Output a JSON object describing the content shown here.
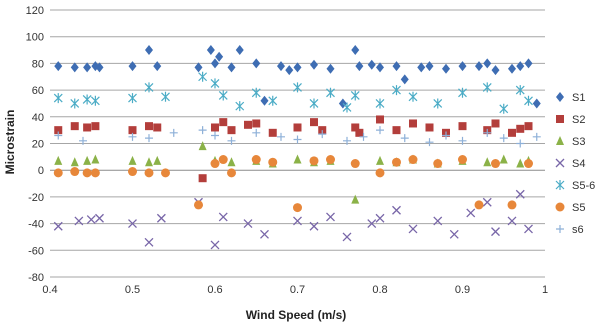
{
  "chart_data": {
    "type": "scatter",
    "xlabel": "Wind Speed (m/s)",
    "ylabel": "Microstrain",
    "xlim": [
      0.4,
      1.0
    ],
    "ylim": [
      -80,
      120
    ],
    "xticks": [
      0.4,
      0.5,
      0.6,
      0.7,
      0.8,
      0.9,
      1.0
    ],
    "xtick_labels": [
      "0.4",
      "0.5",
      "0.6",
      "0.7",
      "0.8",
      "0.9",
      "1"
    ],
    "yticks": [
      -80,
      -60,
      -40,
      -20,
      0,
      20,
      40,
      60,
      80,
      100,
      120
    ],
    "ytick_labels": [
      "-80",
      "-60",
      "-40",
      "-20",
      "0",
      "20",
      "40",
      "60",
      "80",
      "100",
      "120"
    ],
    "grid": "horizontal",
    "legend_position": "right",
    "series": [
      {
        "name": "S1",
        "marker": "diamond",
        "color": "#3e6db3",
        "x": [
          0.41,
          0.43,
          0.445,
          0.455,
          0.46,
          0.5,
          0.52,
          0.53,
          0.58,
          0.595,
          0.6,
          0.605,
          0.62,
          0.63,
          0.65,
          0.66,
          0.68,
          0.69,
          0.7,
          0.72,
          0.74,
          0.755,
          0.77,
          0.775,
          0.79,
          0.8,
          0.82,
          0.83,
          0.85,
          0.86,
          0.88,
          0.9,
          0.92,
          0.93,
          0.94,
          0.96,
          0.97,
          0.98,
          0.99
        ],
        "y": [
          78,
          77,
          77,
          78,
          77,
          78,
          90,
          78,
          77,
          90,
          80,
          85,
          77,
          90,
          80,
          52,
          78,
          75,
          77,
          79,
          76,
          50,
          90,
          78,
          79,
          77,
          78,
          68,
          77,
          78,
          76,
          78,
          78,
          80,
          75,
          76,
          78,
          80,
          50
        ]
      },
      {
        "name": "S2",
        "marker": "square",
        "color": "#b33e3b",
        "x": [
          0.41,
          0.43,
          0.445,
          0.455,
          0.5,
          0.52,
          0.53,
          0.585,
          0.6,
          0.61,
          0.62,
          0.64,
          0.65,
          0.67,
          0.7,
          0.72,
          0.73,
          0.77,
          0.775,
          0.8,
          0.82,
          0.84,
          0.86,
          0.88,
          0.9,
          0.93,
          0.94,
          0.96,
          0.97,
          0.98
        ],
        "y": [
          30,
          33,
          32,
          33,
          30,
          33,
          32,
          -6,
          32,
          36,
          30,
          34,
          35,
          28,
          32,
          36,
          30,
          32,
          28,
          38,
          30,
          35,
          32,
          28,
          33,
          30,
          35,
          28,
          31,
          33
        ]
      },
      {
        "name": "S3",
        "marker": "triangle",
        "color": "#8bb248",
        "x": [
          0.41,
          0.43,
          0.445,
          0.455,
          0.5,
          0.52,
          0.53,
          0.585,
          0.6,
          0.62,
          0.65,
          0.67,
          0.7,
          0.72,
          0.74,
          0.77,
          0.8,
          0.82,
          0.84,
          0.87,
          0.9,
          0.93,
          0.95,
          0.97,
          0.98
        ],
        "y": [
          7,
          6,
          7,
          8,
          7,
          6,
          7,
          18,
          7,
          6,
          7,
          5,
          8,
          6,
          7,
          -22,
          7,
          6,
          8,
          5,
          7,
          6,
          8,
          5,
          7
        ]
      },
      {
        "name": "S4",
        "marker": "x",
        "color": "#7866a8",
        "x": [
          0.41,
          0.435,
          0.45,
          0.46,
          0.5,
          0.52,
          0.535,
          0.58,
          0.6,
          0.61,
          0.64,
          0.66,
          0.7,
          0.72,
          0.74,
          0.76,
          0.79,
          0.8,
          0.82,
          0.84,
          0.87,
          0.89,
          0.91,
          0.93,
          0.94,
          0.96,
          0.97,
          0.98
        ],
        "y": [
          -42,
          -38,
          -37,
          -36,
          -40,
          -54,
          -36,
          -24,
          -56,
          -35,
          -40,
          -48,
          -38,
          -42,
          -35,
          -50,
          -40,
          -36,
          -30,
          -44,
          -38,
          -48,
          -32,
          -24,
          -46,
          -38,
          -18,
          -44
        ]
      },
      {
        "name": "S5-6",
        "marker": "asterisk",
        "color": "#4bacc6",
        "x": [
          0.41,
          0.43,
          0.445,
          0.455,
          0.5,
          0.52,
          0.54,
          0.585,
          0.6,
          0.61,
          0.63,
          0.65,
          0.67,
          0.7,
          0.72,
          0.74,
          0.76,
          0.77,
          0.8,
          0.82,
          0.84,
          0.87,
          0.9,
          0.93,
          0.95,
          0.97,
          0.98
        ],
        "y": [
          54,
          50,
          53,
          52,
          54,
          62,
          55,
          70,
          65,
          56,
          48,
          58,
          52,
          62,
          50,
          58,
          47,
          56,
          50,
          60,
          55,
          50,
          58,
          62,
          46,
          60,
          52
        ]
      },
      {
        "name": "S5",
        "marker": "circle",
        "color": "#e7873a",
        "x": [
          0.41,
          0.43,
          0.445,
          0.455,
          0.5,
          0.52,
          0.54,
          0.58,
          0.6,
          0.61,
          0.62,
          0.65,
          0.67,
          0.7,
          0.72,
          0.74,
          0.77,
          0.8,
          0.82,
          0.84,
          0.87,
          0.9,
          0.92,
          0.94,
          0.96,
          0.98
        ],
        "y": [
          -2,
          -1,
          -2,
          -2,
          -1,
          -2,
          -2,
          -26,
          5,
          8,
          -2,
          8,
          6,
          -28,
          7,
          8,
          5,
          -2,
          6,
          8,
          5,
          8,
          -26,
          5,
          -26,
          5
        ]
      },
      {
        "name": "s6",
        "marker": "plus",
        "color": "#8eb0d8",
        "x": [
          0.41,
          0.44,
          0.5,
          0.52,
          0.55,
          0.585,
          0.6,
          0.62,
          0.65,
          0.68,
          0.7,
          0.73,
          0.76,
          0.78,
          0.8,
          0.83,
          0.86,
          0.88,
          0.9,
          0.93,
          0.95,
          0.97,
          0.99
        ],
        "y": [
          26,
          22,
          25,
          24,
          28,
          30,
          26,
          22,
          28,
          25,
          23,
          27,
          22,
          25,
          30,
          24,
          21,
          26,
          22,
          28,
          24,
          20,
          25
        ]
      }
    ]
  }
}
